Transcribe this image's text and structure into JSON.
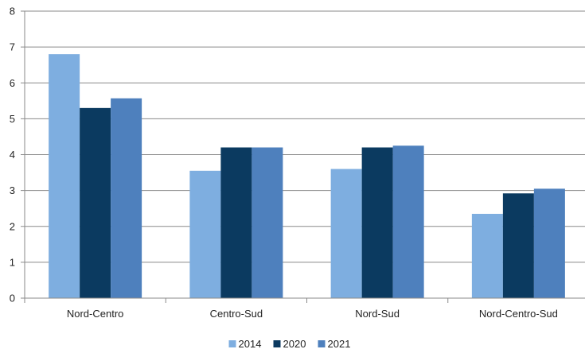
{
  "chart_data": {
    "type": "bar",
    "categories": [
      "Nord-Centro",
      "Centro-Sud",
      "Nord-Sud",
      "Nord-Centro-Sud"
    ],
    "series": [
      {
        "name": "2014",
        "color": "#7eaee0",
        "values": [
          6.8,
          3.55,
          3.6,
          2.35
        ]
      },
      {
        "name": "2020",
        "color": "#0b3a60",
        "values": [
          5.3,
          4.2,
          4.2,
          2.92
        ]
      },
      {
        "name": "2021",
        "color": "#4e80bd",
        "values": [
          5.57,
          4.2,
          4.25,
          3.05
        ]
      }
    ],
    "y_ticks": [
      "0",
      "1",
      "2",
      "3",
      "4",
      "5",
      "6",
      "7",
      "8"
    ],
    "ylim": [
      0,
      8
    ],
    "title": "",
    "xlabel": "",
    "ylabel": "",
    "grid": true,
    "legend_position": "bottom-center"
  }
}
